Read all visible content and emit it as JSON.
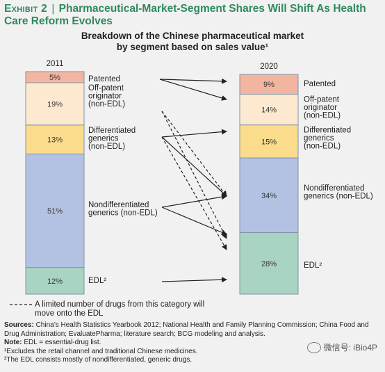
{
  "header": {
    "exhibit_tag": "Exhibit 2",
    "exhibit_title": "Pharmaceutical-Market-Segment Shares Will Shift As Health Care Reform Evolves",
    "chart_title_line1": "Breakdown of the Chinese pharmaceutical market",
    "chart_title_line2": "by segment based on sales value¹"
  },
  "chart_data": {
    "type": "bar",
    "stacked": true,
    "title": "Breakdown of the Chinese pharmaceutical market by segment based on sales value¹",
    "categories": [
      "2011",
      "2020"
    ],
    "series": [
      {
        "name": "EDL²",
        "values": [
          12,
          28
        ],
        "labels": [
          "12%",
          "28%"
        ],
        "color": "#a9d4c1"
      },
      {
        "name": "Nondifferentiated generics (non-EDL)",
        "values": [
          51,
          34
        ],
        "labels": [
          "51%",
          "34%"
        ],
        "color": "#b3c2e2"
      },
      {
        "name": "Differentiated generics (non-EDL)",
        "values": [
          13,
          15
        ],
        "labels": [
          "13%",
          "15%"
        ],
        "color": "#fbdc8c"
      },
      {
        "name": "Off-patent originator (non-EDL)",
        "values": [
          19,
          14
        ],
        "labels": [
          "19%",
          "14%"
        ],
        "color": "#fde9cf"
      },
      {
        "name": "Patented",
        "values": [
          5,
          9
        ],
        "labels": [
          "5%",
          "9%"
        ],
        "color": "#f2b5a0"
      }
    ],
    "left_labels": [
      "Patented",
      "Off-patent\noriginator\n(non-EDL)",
      "Differentiated\ngenerics\n(non-EDL)",
      "Nondifferentiated\ngenerics (non-EDL)",
      "EDL²"
    ],
    "right_labels": [
      "Patented",
      "Off-patent\noriginator\n(non-EDL)",
      "Differentiated\ngenerics\n(non-EDL)",
      "Nondifferentiated\ngenerics (non-EDL)",
      "EDL²"
    ],
    "flows": [
      {
        "from": "Patented",
        "to": "Patented",
        "style": "solid"
      },
      {
        "from": "Patented",
        "to": "Off-patent originator (non-EDL)",
        "style": "solid"
      },
      {
        "from": "Off-patent originator (non-EDL)",
        "to": "Nondifferentiated generics (non-EDL)",
        "style": "dashed"
      },
      {
        "from": "Off-patent originator (non-EDL)",
        "to": "EDL²",
        "style": "dashed"
      },
      {
        "from": "Differentiated generics (non-EDL)",
        "to": "Differentiated generics (non-EDL)",
        "style": "solid"
      },
      {
        "from": "Differentiated generics (non-EDL)",
        "to": "Nondifferentiated generics (non-EDL)",
        "style": "solid"
      },
      {
        "from": "Differentiated generics (non-EDL)",
        "to": "EDL²",
        "style": "dashed"
      },
      {
        "from": "Nondifferentiated generics (non-EDL)",
        "to": "Nondifferentiated generics (non-EDL)",
        "style": "solid"
      },
      {
        "from": "Nondifferentiated generics (non-EDL)",
        "to": "EDL²",
        "style": "solid"
      },
      {
        "from": "EDL²",
        "to": "EDL²",
        "style": "solid"
      }
    ],
    "ylim": [
      0,
      100
    ],
    "grid": false,
    "legend_note": "A limited number of drugs from this category will move onto the EDL"
  },
  "footer": {
    "sources_label": "Sources:",
    "sources_text": " China’s Health Statistics Yearbook 2012; National Health and Family Planning Commission; China Food and Drug Administration; EvaluatePharma; literature search; BCG modeling and analysis.",
    "note_label": "Note:",
    "note_text": " EDL = essential-drug list.",
    "footnote1": "¹Excludes the retail channel and traditional Chinese medicines.",
    "footnote2": "²The EDL consists mostly of nondifferentiated, generic drugs."
  },
  "watermark": {
    "text": "微信号: iBio4P"
  }
}
